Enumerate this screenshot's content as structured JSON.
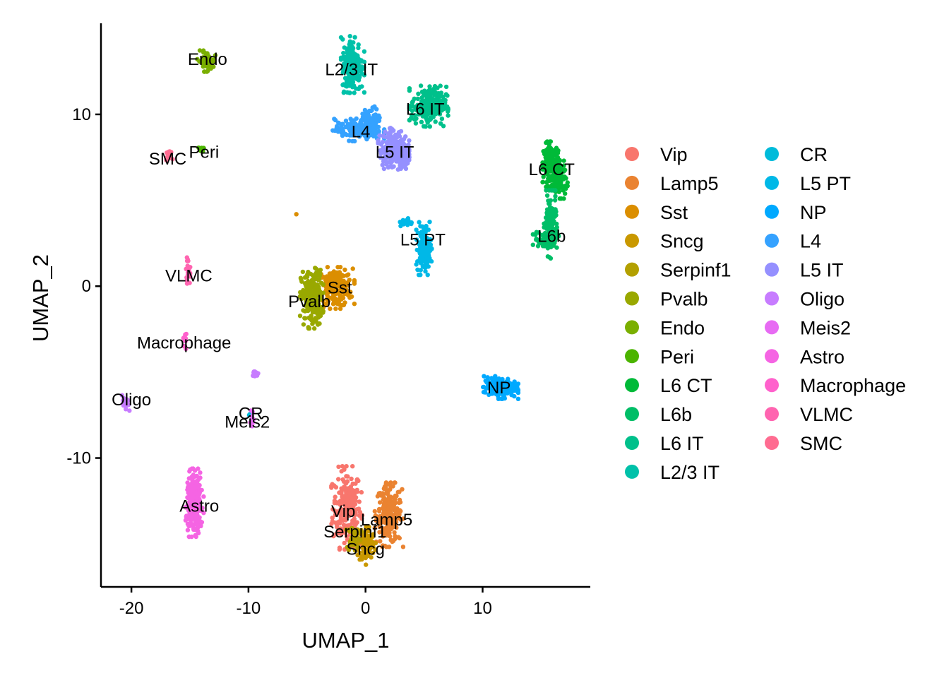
{
  "chart_data": {
    "type": "scatter",
    "title": "",
    "xlabel": "UMAP_1",
    "ylabel": "UMAP_2",
    "xlim": [
      -22.6,
      19.2
    ],
    "ylim": [
      -17.5,
      15.3
    ],
    "xticks": [
      -20,
      -10,
      0,
      10
    ],
    "yticks": [
      -10,
      0,
      10
    ],
    "grid": false,
    "legend_position": "right",
    "legend_columns": 2,
    "series": [
      {
        "name": "Vip",
        "color": "#F8766D",
        "label_at": [
          -1.9,
          -13.1
        ],
        "blobs": [
          {
            "cx": -1.6,
            "cy": -12.9,
            "sx": 0.6,
            "sy": 1.1,
            "n": 220
          }
        ]
      },
      {
        "name": "Lamp5",
        "color": "#EA8331",
        "label_at": [
          1.8,
          -13.6
        ],
        "blobs": [
          {
            "cx": 2.0,
            "cy": -13.3,
            "sx": 0.55,
            "sy": 0.85,
            "n": 200
          }
        ]
      },
      {
        "name": "Sst",
        "color": "#DB8E00",
        "label_at": [
          -2.2,
          -0.1
        ],
        "blobs": [
          {
            "cx": -2.6,
            "cy": -0.1,
            "sx": 0.75,
            "sy": 0.55,
            "n": 200
          },
          {
            "cx": -5.9,
            "cy": 4.2,
            "sx": 0.05,
            "sy": 0.05,
            "n": 1
          }
        ]
      },
      {
        "name": "Sncg",
        "color": "#C99800",
        "label_at": [
          0.0,
          -15.3
        ],
        "blobs": [
          {
            "cx": 0.1,
            "cy": -15.0,
            "sx": 0.35,
            "sy": 0.55,
            "n": 90
          }
        ]
      },
      {
        "name": "Serpinf1",
        "color": "#B3A000",
        "label_at": [
          -0.9,
          -14.3
        ],
        "blobs": [
          {
            "cx": -1.0,
            "cy": -14.6,
            "sx": 0.3,
            "sy": 0.4,
            "n": 40
          }
        ]
      },
      {
        "name": "Pvalb",
        "color": "#99A800",
        "label_at": [
          -4.8,
          -0.9
        ],
        "blobs": [
          {
            "cx": -4.6,
            "cy": -0.7,
            "sx": 0.45,
            "sy": 0.8,
            "n": 220
          }
        ]
      },
      {
        "name": "Endo",
        "color": "#7AAF00",
        "label_at": [
          -13.5,
          13.2
        ],
        "blobs": [
          {
            "cx": -13.6,
            "cy": 13.1,
            "sx": 0.35,
            "sy": 0.28,
            "n": 60
          }
        ]
      },
      {
        "name": "Peri",
        "color": "#4BB400",
        "label_at": [
          -13.8,
          7.8
        ],
        "blobs": [
          {
            "cx": -14.0,
            "cy": 7.9,
            "sx": 0.15,
            "sy": 0.1,
            "n": 8
          }
        ]
      },
      {
        "name": "L6 CT",
        "color": "#00BA38",
        "label_at": [
          15.9,
          6.8
        ],
        "blobs": [
          {
            "cx": 15.9,
            "cy": 7.1,
            "sx": 0.35,
            "sy": 0.6,
            "n": 160
          },
          {
            "cx": 16.6,
            "cy": 6.2,
            "sx": 0.3,
            "sy": 0.5,
            "n": 80
          }
        ]
      },
      {
        "name": "L6b",
        "color": "#00BE67",
        "label_at": [
          15.9,
          2.9
        ],
        "blobs": [
          {
            "cx": 15.8,
            "cy": 3.6,
            "sx": 0.25,
            "sy": 0.9,
            "n": 110
          },
          {
            "cx": 15.4,
            "cy": 2.7,
            "sx": 0.5,
            "sy": 0.25,
            "n": 60
          }
        ]
      },
      {
        "name": "L6 IT",
        "color": "#00C08B",
        "label_at": [
          5.1,
          10.3
        ],
        "blobs": [
          {
            "cx": 5.4,
            "cy": 10.5,
            "sx": 0.75,
            "sy": 0.55,
            "n": 220
          }
        ]
      },
      {
        "name": "L2/3 IT",
        "color": "#00C1A9",
        "label_at": [
          -1.2,
          12.6
        ],
        "blobs": [
          {
            "cx": -1.1,
            "cy": 12.9,
            "sx": 0.45,
            "sy": 0.75,
            "n": 220
          }
        ]
      },
      {
        "name": "CR",
        "color": "#00BBDA",
        "label_at": [
          -9.8,
          -7.4
        ],
        "blobs": [
          {
            "cx": -9.9,
            "cy": -7.4,
            "sx": 0.05,
            "sy": 0.05,
            "n": 3
          }
        ]
      },
      {
        "name": "L5 PT",
        "color": "#00B8E7",
        "label_at": [
          4.9,
          2.7
        ],
        "blobs": [
          {
            "cx": 5.0,
            "cy": 2.2,
            "sx": 0.3,
            "sy": 0.7,
            "n": 150
          },
          {
            "cx": 3.5,
            "cy": 3.7,
            "sx": 0.25,
            "sy": 0.12,
            "n": 20
          }
        ]
      },
      {
        "name": "NP",
        "color": "#00A9FF",
        "label_at": [
          11.4,
          -5.9
        ],
        "blobs": [
          {
            "cx": 11.5,
            "cy": -5.9,
            "sx": 0.7,
            "sy": 0.3,
            "n": 170
          }
        ]
      },
      {
        "name": "L4",
        "color": "#35A2FF",
        "label_at": [
          -0.4,
          9.0
        ],
        "blobs": [
          {
            "cx": -0.6,
            "cy": 9.1,
            "sx": 1.0,
            "sy": 0.3,
            "n": 170
          },
          {
            "cx": 0.5,
            "cy": 9.8,
            "sx": 0.4,
            "sy": 0.3,
            "n": 60
          }
        ]
      },
      {
        "name": "L5 IT",
        "color": "#9590FF",
        "label_at": [
          2.5,
          7.8
        ],
        "blobs": [
          {
            "cx": 2.4,
            "cy": 8.0,
            "sx": 0.6,
            "sy": 0.55,
            "n": 200
          },
          {
            "cx": 3.3,
            "cy": 7.5,
            "sx": 0.25,
            "sy": 0.3,
            "n": 50
          }
        ]
      },
      {
        "name": "Oligo",
        "color": "#C77CFF",
        "label_at": [
          -20.0,
          -6.6
        ],
        "blobs": [
          {
            "cx": -20.5,
            "cy": -6.9,
            "sx": 0.15,
            "sy": 0.25,
            "n": 20
          },
          {
            "cx": -9.4,
            "cy": -5.1,
            "sx": 0.1,
            "sy": 0.12,
            "n": 12
          }
        ]
      },
      {
        "name": "Meis2",
        "color": "#E76BF3",
        "label_at": [
          -10.1,
          -7.9
        ],
        "blobs": [
          {
            "cx": -9.7,
            "cy": -7.8,
            "sx": 0.08,
            "sy": 0.3,
            "n": 14
          }
        ]
      },
      {
        "name": "Astro",
        "color": "#F564E3",
        "label_at": [
          -14.2,
          -12.8
        ],
        "blobs": [
          {
            "cx": -14.6,
            "cy": -12.6,
            "sx": 0.35,
            "sy": 0.9,
            "n": 250
          }
        ]
      },
      {
        "name": "Macrophage",
        "color": "#FF61CC",
        "label_at": [
          -15.5,
          -3.3
        ],
        "blobs": [
          {
            "cx": -15.4,
            "cy": -3.1,
            "sx": 0.08,
            "sy": 0.25,
            "n": 14
          }
        ]
      },
      {
        "name": "VLMC",
        "color": "#FF64B0",
        "label_at": [
          -15.1,
          0.6
        ],
        "blobs": [
          {
            "cx": -15.2,
            "cy": 0.9,
            "sx": 0.1,
            "sy": 0.35,
            "n": 22
          }
        ]
      },
      {
        "name": "SMC",
        "color": "#FF6C91",
        "label_at": [
          -16.9,
          7.4
        ],
        "blobs": [
          {
            "cx": -16.8,
            "cy": 7.6,
            "sx": 0.15,
            "sy": 0.12,
            "n": 14
          }
        ]
      }
    ]
  }
}
